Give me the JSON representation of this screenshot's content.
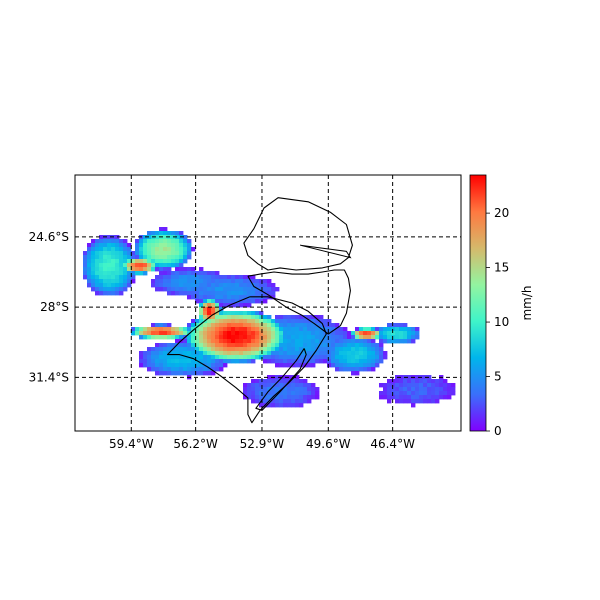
{
  "chart_data": {
    "type": "heatmap",
    "title": "",
    "xlabel": "",
    "ylabel": "",
    "xlim": [
      -62.2,
      -43.0
    ],
    "ylim": [
      -34.0,
      -21.6
    ],
    "lon_ticks": [
      {
        "value": -59.4,
        "label": "59.4°W"
      },
      {
        "value": -56.2,
        "label": "56.2°W"
      },
      {
        "value": -52.9,
        "label": "52.9°W"
      },
      {
        "value": -49.6,
        "label": "49.6°W"
      },
      {
        "value": -46.4,
        "label": "46.4°W"
      }
    ],
    "lat_ticks": [
      {
        "value": -24.6,
        "label": "24.6°S"
      },
      {
        "value": -28.0,
        "label": "28°S"
      },
      {
        "value": -31.4,
        "label": "31.4°S"
      }
    ],
    "grid": true,
    "colorbar": {
      "label": "mm/h",
      "range": [
        0,
        23.5
      ],
      "ticks": [
        0,
        5,
        10,
        15,
        20
      ],
      "colormap": "rainbow",
      "colors": [
        "#8000ff",
        "#3a6ffb",
        "#00b5eb",
        "#3ff4c9",
        "#93f4a0",
        "#d5b96b",
        "#ff7840",
        "#ff0000"
      ]
    },
    "rain_cells": [
      {
        "lon": -54.2,
        "lat": -29.4,
        "rx": 2.6,
        "ry": 1.3,
        "peak": 23.5
      },
      {
        "lon": -55.5,
        "lat": -28.2,
        "rx": 0.6,
        "ry": 0.6,
        "peak": 23.0
      },
      {
        "lon": -57.9,
        "lat": -29.2,
        "rx": 1.6,
        "ry": 0.35,
        "peak": 22.0
      },
      {
        "lon": -59.0,
        "lat": -26.0,
        "rx": 0.9,
        "ry": 0.4,
        "peak": 22.0
      },
      {
        "lon": -57.8,
        "lat": -25.2,
        "rx": 1.5,
        "ry": 1.0,
        "peak": 14.0
      },
      {
        "lon": -60.5,
        "lat": -26.0,
        "rx": 1.4,
        "ry": 1.5,
        "peak": 10.0
      },
      {
        "lon": -47.7,
        "lat": -29.3,
        "rx": 0.8,
        "ry": 0.3,
        "peak": 22.0
      },
      {
        "lon": -46.2,
        "lat": -29.3,
        "rx": 1.2,
        "ry": 0.5,
        "peak": 9.0
      },
      {
        "lon": -51.2,
        "lat": -29.6,
        "rx": 2.8,
        "ry": 1.3,
        "peak": 6.0
      },
      {
        "lon": -48.3,
        "lat": -30.3,
        "rx": 1.6,
        "ry": 0.9,
        "peak": 8.0
      },
      {
        "lon": -56.8,
        "lat": -30.5,
        "rx": 2.3,
        "ry": 0.9,
        "peak": 7.0
      },
      {
        "lon": -52.0,
        "lat": -32.1,
        "rx": 2.0,
        "ry": 0.8,
        "peak": 4.0
      },
      {
        "lon": -45.2,
        "lat": -32.0,
        "rx": 2.0,
        "ry": 0.8,
        "peak": 3.0
      },
      {
        "lon": -54.5,
        "lat": -27.2,
        "rx": 2.5,
        "ry": 0.8,
        "peak": 5.0
      },
      {
        "lon": -56.5,
        "lat": -26.8,
        "rx": 2.0,
        "ry": 0.7,
        "peak": 5.0
      }
    ],
    "boundaries": [
      {
        "name": "northern-state-outline",
        "points": [
          [
            -53.2,
            -24.0
          ],
          [
            -52.8,
            -23.2
          ],
          [
            -52.1,
            -22.7
          ],
          [
            -50.6,
            -22.9
          ],
          [
            -49.5,
            -23.4
          ],
          [
            -48.7,
            -24.0
          ],
          [
            -48.4,
            -25.0
          ],
          [
            -48.6,
            -25.6
          ],
          [
            -49.0,
            -25.9
          ],
          [
            -49.9,
            -26.1
          ],
          [
            -51.2,
            -26.2
          ],
          [
            -52.0,
            -26.1
          ],
          [
            -52.6,
            -26.2
          ],
          [
            -53.1,
            -25.9
          ],
          [
            -53.6,
            -25.5
          ],
          [
            -53.8,
            -24.9
          ],
          [
            -53.3,
            -24.2
          ],
          [
            -53.2,
            -24.0
          ]
        ]
      },
      {
        "name": "central-state-outline",
        "points": [
          [
            -53.6,
            -26.5
          ],
          [
            -53.0,
            -26.4
          ],
          [
            -52.3,
            -26.3
          ],
          [
            -51.4,
            -26.4
          ],
          [
            -50.6,
            -26.4
          ],
          [
            -49.9,
            -26.3
          ],
          [
            -49.3,
            -26.2
          ],
          [
            -48.8,
            -26.2
          ],
          [
            -48.6,
            -26.6
          ],
          [
            -48.5,
            -27.2
          ],
          [
            -48.7,
            -28.3
          ],
          [
            -49.0,
            -28.9
          ],
          [
            -49.6,
            -29.3
          ],
          [
            -50.3,
            -28.8
          ],
          [
            -50.9,
            -28.4
          ],
          [
            -51.7,
            -28.0
          ],
          [
            -52.6,
            -27.4
          ],
          [
            -53.3,
            -27.0
          ],
          [
            -53.6,
            -26.5
          ]
        ]
      },
      {
        "name": "southern-state-outline",
        "points": [
          [
            -53.5,
            -27.5
          ],
          [
            -52.6,
            -27.5
          ],
          [
            -51.4,
            -27.8
          ],
          [
            -50.6,
            -28.2
          ],
          [
            -49.9,
            -28.8
          ],
          [
            -49.7,
            -29.3
          ],
          [
            -50.2,
            -30.1
          ],
          [
            -50.8,
            -30.9
          ],
          [
            -51.6,
            -31.7
          ],
          [
            -52.3,
            -32.3
          ],
          [
            -53.0,
            -33.0
          ],
          [
            -53.4,
            -33.6
          ],
          [
            -53.6,
            -33.2
          ],
          [
            -53.6,
            -32.4
          ],
          [
            -54.2,
            -31.9
          ],
          [
            -55.0,
            -31.3
          ],
          [
            -55.6,
            -30.9
          ],
          [
            -56.3,
            -30.5
          ],
          [
            -57.0,
            -30.3
          ],
          [
            -57.6,
            -30.3
          ],
          [
            -57.0,
            -29.7
          ],
          [
            -56.3,
            -29.1
          ],
          [
            -55.4,
            -28.4
          ],
          [
            -54.5,
            -27.9
          ],
          [
            -53.5,
            -27.5
          ]
        ]
      },
      {
        "name": "lagoon-outline",
        "points": [
          [
            -50.8,
            -30.0
          ],
          [
            -51.2,
            -30.6
          ],
          [
            -51.9,
            -31.4
          ],
          [
            -52.6,
            -32.1
          ],
          [
            -53.2,
            -32.9
          ],
          [
            -52.9,
            -33.0
          ],
          [
            -52.0,
            -32.1
          ],
          [
            -51.0,
            -31.0
          ],
          [
            -50.7,
            -30.3
          ],
          [
            -50.8,
            -30.0
          ]
        ]
      }
    ],
    "extra_lines": [
      [
        [
          -51.0,
          -25.0
        ],
        [
          -48.5,
          -25.6
        ],
        [
          -48.7,
          -25.3
        ],
        [
          -51.0,
          -25.0
        ]
      ]
    ]
  }
}
